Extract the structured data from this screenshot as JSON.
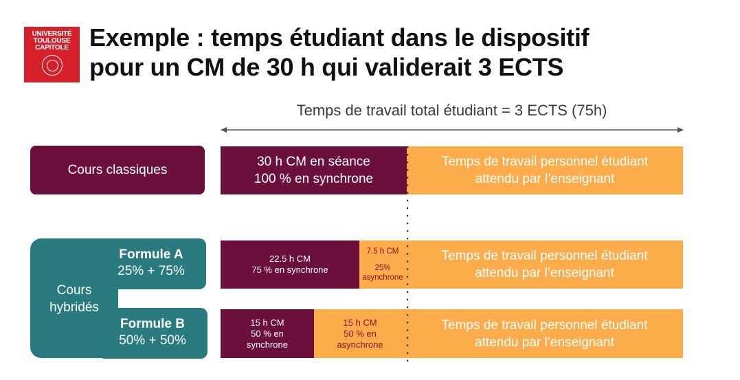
{
  "logo": {
    "line1": "UNIVERSITÉ",
    "line2": "TOULOUSE",
    "line3": "CAPITOLE"
  },
  "title": {
    "line1": "Exemple : temps étudiant dans le dispositif",
    "line2": "pour un CM de 30 h qui validerait 3 ECTS"
  },
  "total_label": "Temps de travail total étudiant = 3 ECTS (75h)",
  "rows": {
    "classique": {
      "label": "Cours classiques",
      "sync_line1": "30 h CM en séance",
      "sync_line2": "100 % en synchrone",
      "perso_line1": "Temps de travail personnel étudiant",
      "perso_line2": "attendu par l’enseignant"
    },
    "hybride": {
      "label_line1": "Cours",
      "label_line2": "hybridés",
      "formule_a": {
        "name": "Formule A",
        "split": "25% + 75%",
        "sync_line1": "22.5 h CM",
        "sync_line2": "75 % en synchrone",
        "async_line1": "7.5 h CM",
        "async_line2": "25%",
        "async_line3": "asynchrone",
        "perso_line1": "Temps de travail personnel étudiant",
        "perso_line2": "attendu par l’enseignant"
      },
      "formule_b": {
        "name": "Formule B",
        "split": "50% + 50%",
        "sync_line1": "15 h CM",
        "sync_line2": "50 % en",
        "sync_line3": "synchrone",
        "async_line1": "15 h CM",
        "async_line2": "50 % en",
        "async_line3": "asynchrone",
        "perso_line1": "Temps de travail personnel étudiant",
        "perso_line2": "attendu par l’enseignant"
      }
    }
  },
  "colors": {
    "brand_red": "#d51f2a",
    "purple": "#6b0f3b",
    "teal": "#2a7b7f",
    "orange": "#fcac4b"
  }
}
